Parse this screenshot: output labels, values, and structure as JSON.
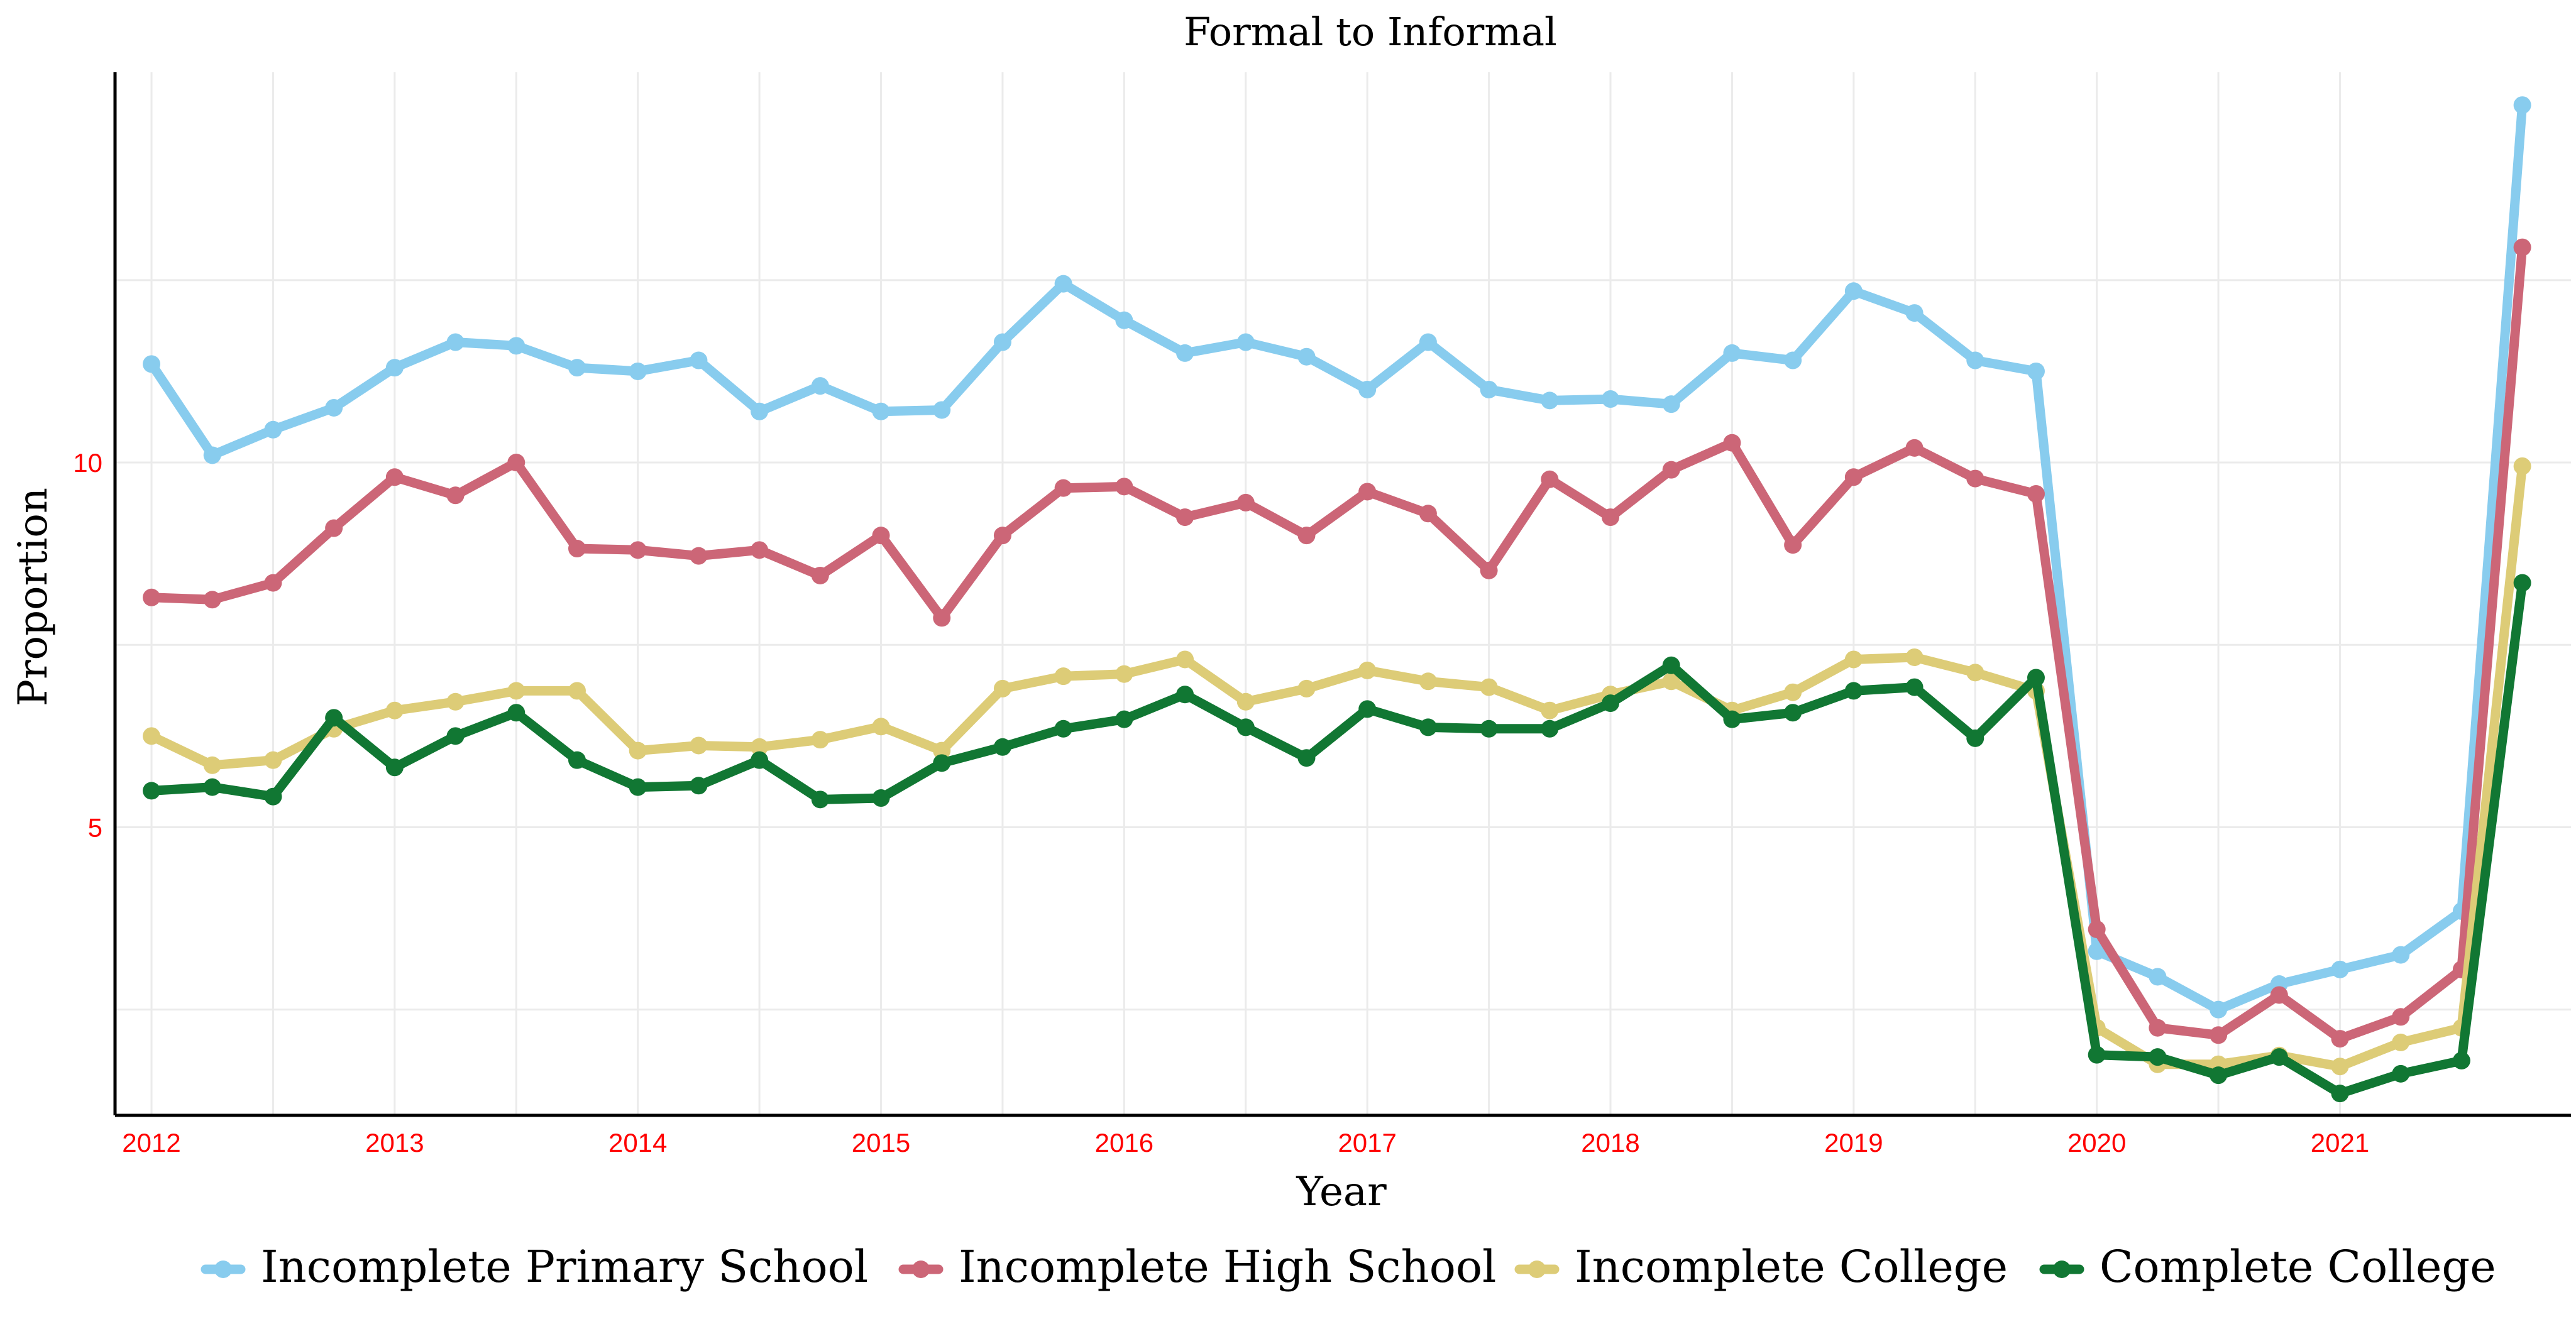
{
  "chart_data": {
    "type": "line",
    "title": "Formal to Informal",
    "xlabel": "Year",
    "ylabel": "Proportion",
    "xlim": [
      2011.85,
      2021.95
    ],
    "ylim": [
      1.05,
      15.35
    ],
    "x_ticks": [
      2012,
      2013,
      2014,
      2015,
      2016,
      2017,
      2018,
      2019,
      2020,
      2021
    ],
    "y_ticks": [
      5,
      10
    ],
    "grid": true,
    "legend_position": "bottom",
    "x": [
      2012.0,
      2012.25,
      2012.5,
      2012.75,
      2013.0,
      2013.25,
      2013.5,
      2013.75,
      2014.0,
      2014.25,
      2014.5,
      2014.75,
      2015.0,
      2015.25,
      2015.5,
      2015.75,
      2016.0,
      2016.25,
      2016.5,
      2016.75,
      2017.0,
      2017.25,
      2017.5,
      2017.75,
      2018.0,
      2018.25,
      2018.5,
      2018.75,
      2019.0,
      2019.25,
      2019.5,
      2019.75,
      2020.0,
      2020.25,
      2020.5,
      2020.75,
      2021.0,
      2021.25,
      2021.5,
      2021.75
    ],
    "series": [
      {
        "name": "Incomplete Primary School",
        "color": "#88ccee",
        "values": [
          11.35,
          10.1,
          10.45,
          10.75,
          11.3,
          11.65,
          11.6,
          11.3,
          11.25,
          11.4,
          10.7,
          11.05,
          10.7,
          10.72,
          11.65,
          12.45,
          11.95,
          11.5,
          11.65,
          11.45,
          11.0,
          11.65,
          11.0,
          10.85,
          10.87,
          10.8,
          11.5,
          11.4,
          12.35,
          12.05,
          11.4,
          11.25,
          3.3,
          2.95,
          2.5,
          2.85,
          3.05,
          3.25,
          3.85,
          14.9
        ]
      },
      {
        "name": "Incomplete High School",
        "color": "#cc6677",
        "values": [
          8.15,
          8.12,
          8.35,
          9.1,
          9.8,
          9.55,
          10.0,
          8.82,
          8.8,
          8.72,
          8.8,
          8.45,
          9.0,
          7.87,
          9.0,
          9.65,
          9.67,
          9.25,
          9.45,
          9.0,
          9.6,
          9.3,
          8.52,
          9.77,
          9.25,
          9.9,
          10.27,
          8.87,
          9.8,
          10.2,
          9.78,
          9.57,
          3.6,
          2.25,
          2.15,
          2.7,
          2.1,
          2.4,
          3.05,
          12.95
        ]
      },
      {
        "name": "Incomplete College",
        "color": "#ddcc77",
        "values": [
          6.25,
          5.85,
          5.92,
          6.35,
          6.6,
          6.72,
          6.87,
          6.87,
          6.05,
          6.12,
          6.1,
          6.2,
          6.38,
          6.05,
          6.9,
          7.07,
          7.1,
          7.3,
          6.72,
          6.9,
          7.15,
          7.0,
          6.92,
          6.6,
          6.82,
          7.0,
          6.6,
          6.85,
          7.3,
          7.33,
          7.12,
          6.87,
          2.25,
          1.75,
          1.75,
          1.87,
          1.72,
          2.05,
          2.25,
          9.95
        ]
      },
      {
        "name": "Complete College",
        "color": "#117733",
        "values": [
          5.5,
          5.55,
          5.42,
          6.5,
          5.82,
          6.25,
          6.57,
          5.92,
          5.55,
          5.57,
          5.92,
          5.38,
          5.4,
          5.88,
          6.1,
          6.35,
          6.48,
          6.82,
          6.37,
          5.95,
          6.62,
          6.37,
          6.35,
          6.35,
          6.7,
          7.22,
          6.48,
          6.57,
          6.87,
          6.92,
          6.22,
          7.05,
          1.88,
          1.85,
          1.6,
          1.85,
          1.35,
          1.62,
          1.8,
          8.35
        ]
      }
    ]
  }
}
